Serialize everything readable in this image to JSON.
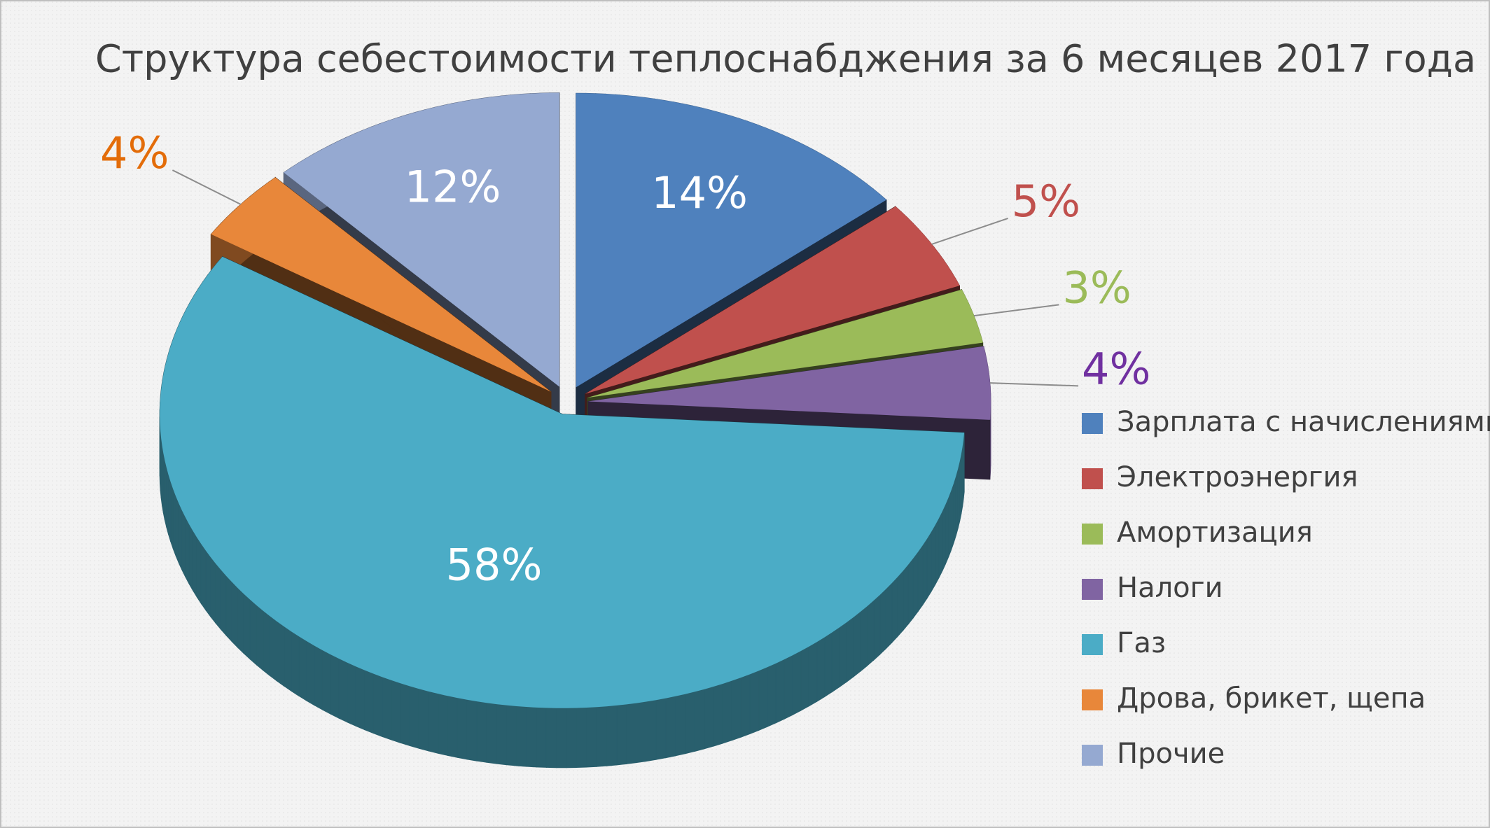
{
  "chart_data": {
    "type": "pie3d",
    "title": "Структура себестоимости теплоснабджения за 6 месяцев 2017 года",
    "categories": [
      "Зарплата с начислениями",
      "Электроэнергия",
      "Амортизация",
      "Налоги",
      "Газ",
      "Дрова, брикет, щепа",
      "Прочие"
    ],
    "values": [
      14,
      5,
      3,
      4,
      58,
      4,
      12
    ],
    "value_labels": [
      "14%",
      "5%",
      "3%",
      "4%",
      "58%",
      "4%",
      "12%"
    ],
    "colors": [
      "#4f81bd",
      "#c0504d",
      "#9bbb59",
      "#8064a2",
      "#4bacc6",
      "#e8873a",
      "#95a9d1"
    ],
    "label_colors": [
      "#ffffff",
      "#c0504d",
      "#9bbb59",
      "#7030a0",
      "#ffffff",
      "#e36c09",
      "#ffffff"
    ],
    "legend": "right"
  }
}
